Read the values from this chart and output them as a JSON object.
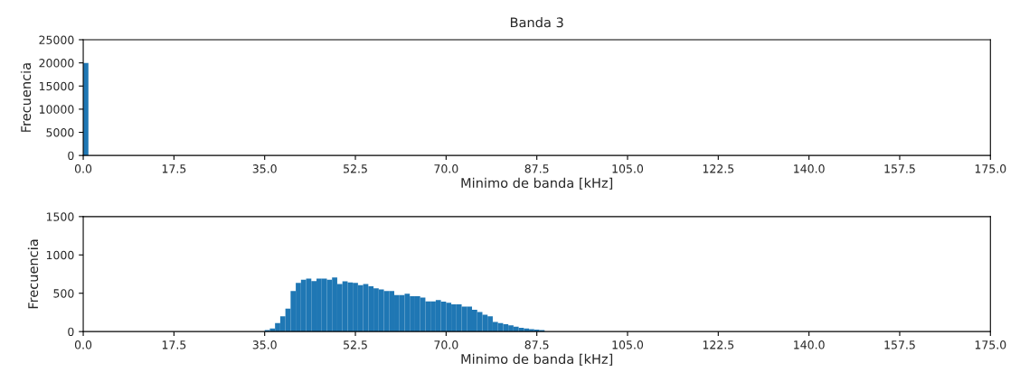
{
  "chart_data": [
    {
      "type": "histogram",
      "title": "Banda 3",
      "xlabel": "Minimo de banda [kHz]",
      "ylabel": "Frecuencia",
      "color": "#1f77b4",
      "bins": [
        0,
        1
      ],
      "values": [
        20000
      ],
      "xlim": [
        0,
        175
      ],
      "xticks": [
        {
          "value": 0,
          "label": "0.0"
        },
        {
          "value": 17.5,
          "label": "17.5"
        },
        {
          "value": 35,
          "label": "35.0"
        },
        {
          "value": 52.5,
          "label": "52.5"
        },
        {
          "value": 70,
          "label": "70.0"
        },
        {
          "value": 87.5,
          "label": "87.5"
        },
        {
          "value": 105,
          "label": "105.0"
        },
        {
          "value": 122.5,
          "label": "122.5"
        },
        {
          "value": 140,
          "label": "140.0"
        },
        {
          "value": 157.5,
          "label": "157.5"
        },
        {
          "value": 175,
          "label": "175.0"
        }
      ],
      "ylim": [
        0,
        25000
      ],
      "yticks": [
        0,
        5000,
        10000,
        15000,
        20000,
        25000
      ],
      "grid": false
    },
    {
      "type": "histogram",
      "xlabel": "Minimo de banda [kHz]",
      "ylabel": "Frecuencia",
      "color": "#1f77b4",
      "bins": [
        35,
        36,
        37,
        38,
        39,
        40,
        41,
        42,
        43,
        44,
        45,
        46,
        47,
        48,
        49,
        50,
        51,
        52,
        53,
        54,
        55,
        56,
        57,
        58,
        59,
        60,
        61,
        62,
        63,
        64,
        65,
        66,
        67,
        68,
        69,
        70,
        71,
        72,
        73,
        74,
        75,
        76,
        77,
        78,
        79,
        80,
        81,
        82,
        83,
        84,
        85,
        86,
        87,
        88,
        89
      ],
      "values": [
        20,
        40,
        110,
        200,
        300,
        530,
        635,
        675,
        690,
        660,
        690,
        690,
        675,
        705,
        620,
        655,
        640,
        635,
        605,
        620,
        590,
        565,
        550,
        530,
        530,
        475,
        475,
        495,
        460,
        460,
        445,
        395,
        395,
        410,
        390,
        375,
        355,
        355,
        325,
        325,
        285,
        255,
        220,
        200,
        125,
        110,
        95,
        80,
        65,
        50,
        40,
        30,
        25,
        20
      ],
      "xlim": [
        0,
        175
      ],
      "xticks": [
        {
          "value": 0,
          "label": "0.0"
        },
        {
          "value": 17.5,
          "label": "17.5"
        },
        {
          "value": 35,
          "label": "35.0"
        },
        {
          "value": 52.5,
          "label": "52.5"
        },
        {
          "value": 70,
          "label": "70.0"
        },
        {
          "value": 87.5,
          "label": "87.5"
        },
        {
          "value": 105,
          "label": "105.0"
        },
        {
          "value": 122.5,
          "label": "122.5"
        },
        {
          "value": 140,
          "label": "140.0"
        },
        {
          "value": 157.5,
          "label": "157.5"
        },
        {
          "value": 175,
          "label": "175.0"
        }
      ],
      "ylim": [
        0,
        1500
      ],
      "yticks": [
        0,
        500,
        1000,
        1500
      ],
      "grid": false
    }
  ]
}
